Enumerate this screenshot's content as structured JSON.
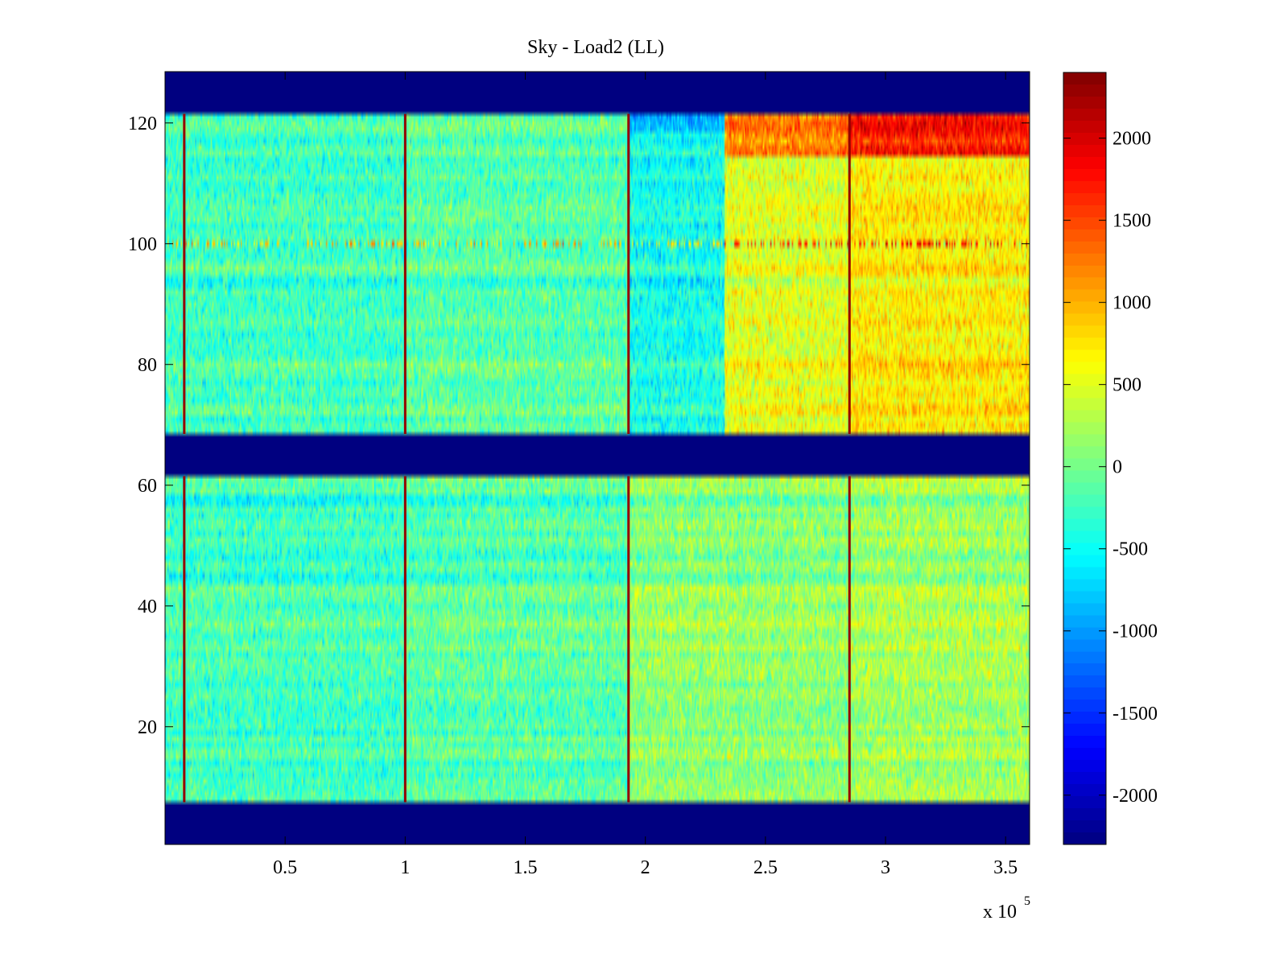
{
  "chart_data": {
    "type": "heatmap",
    "title": "Sky - Load2 (LL)",
    "xlabel": "",
    "ylabel": "",
    "x_exponent_label": "x 10",
    "x_exponent": "5",
    "xlim": [
      0,
      3.6
    ],
    "ylim": [
      0.5,
      128.5
    ],
    "x_ticks": [
      0.5,
      1,
      1.5,
      2,
      2.5,
      3,
      3.5
    ],
    "x_tick_labels": [
      "0.5",
      "1",
      "1.5",
      "2",
      "2.5",
      "3",
      "3.5"
    ],
    "y_ticks": [
      20,
      40,
      60,
      80,
      100,
      120
    ],
    "y_tick_labels": [
      "20",
      "40",
      "60",
      "80",
      "100",
      "120"
    ],
    "colormap": "jet",
    "clim": [
      -2300,
      2400
    ],
    "colorbar_ticks": [
      -2000,
      -1500,
      -1000,
      -500,
      0,
      500,
      1000,
      1500,
      2000
    ],
    "colorbar_tick_labels": [
      "-2000",
      "-1500",
      "-1000",
      "-500",
      "0",
      "500",
      "1000",
      "1500",
      "2000"
    ],
    "masked_row_ranges": [
      [
        1,
        7
      ],
      [
        62,
        68
      ],
      [
        122,
        128
      ]
    ],
    "masked_value": -2300,
    "spike_columns_x": [
      0.08,
      1.0,
      1.93,
      2.85
    ],
    "spike_value": 2300,
    "regions": [
      {
        "x_range": [
          0,
          1.0
        ],
        "y_range": [
          8,
          61
        ],
        "mean": -250
      },
      {
        "x_range": [
          1.0,
          1.93
        ],
        "y_range": [
          8,
          61
        ],
        "mean": -150
      },
      {
        "x_range": [
          1.93,
          2.85
        ],
        "y_range": [
          8,
          61
        ],
        "mean": 100
      },
      {
        "x_range": [
          2.85,
          3.6
        ],
        "y_range": [
          8,
          61
        ],
        "mean": 200
      },
      {
        "x_range": [
          0,
          1.0
        ],
        "y_range": [
          69,
          121
        ],
        "mean": -250
      },
      {
        "x_range": [
          1.0,
          1.93
        ],
        "y_range": [
          69,
          121
        ],
        "mean": -150
      },
      {
        "x_range": [
          1.93,
          2.33
        ],
        "y_range": [
          69,
          121
        ],
        "mean": -450
      },
      {
        "x_range": [
          1.93,
          2.33
        ],
        "y_range": [
          119,
          121
        ],
        "mean": -1000
      },
      {
        "x_range": [
          2.33,
          2.85
        ],
        "y_range": [
          69,
          121
        ],
        "mean": 500
      },
      {
        "x_range": [
          2.33,
          2.85
        ],
        "y_range": [
          115,
          121
        ],
        "mean": 1200
      },
      {
        "x_range": [
          2.85,
          3.6
        ],
        "y_range": [
          69,
          121
        ],
        "mean": 700
      },
      {
        "x_range": [
          2.85,
          3.6
        ],
        "y_range": [
          115,
          121
        ],
        "mean": 1700
      }
    ],
    "hot_row_y": 100,
    "grid": false,
    "legend": "none"
  }
}
